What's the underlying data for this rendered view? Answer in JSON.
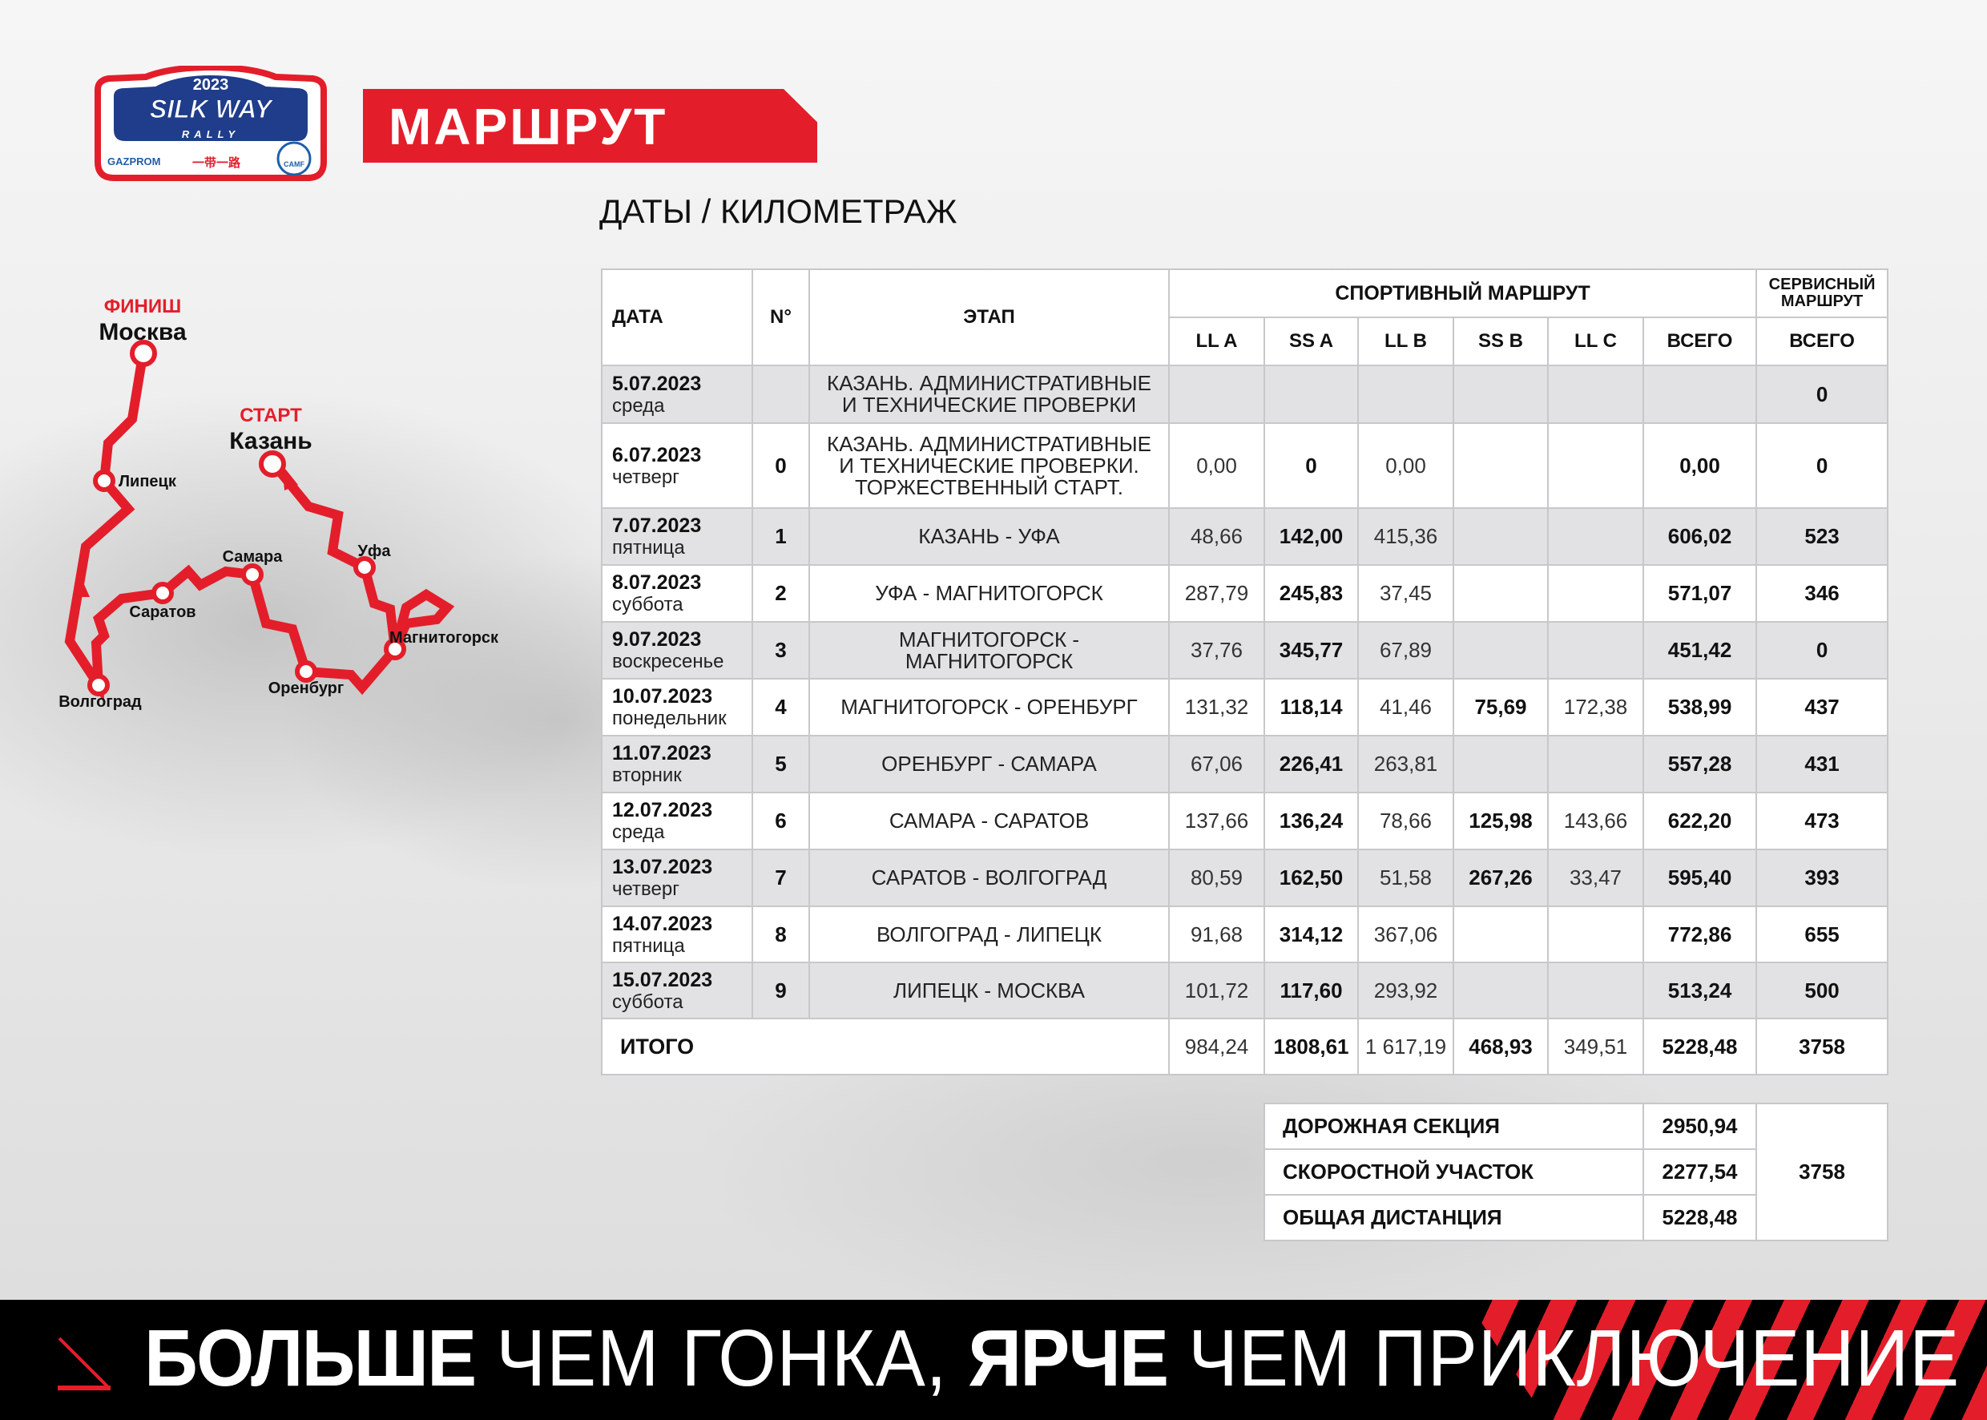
{
  "logo": {
    "year": "2023",
    "name": "SILK WAY",
    "sub": "RALLY",
    "sponsor": "GAZPROM",
    "chinese": "一带一路",
    "badge": "CAMF"
  },
  "header": {
    "title": "МАРШРУТ",
    "subtitle": "ДАТЫ / КИЛОМЕТРАЖ"
  },
  "colors": {
    "accent": "#e31e2a",
    "row_alt": "#e2e2e4",
    "banner": "#000000"
  },
  "map": {
    "finish_label": "ФИНИШ",
    "finish_city": "Москва",
    "start_label": "СТАРТ",
    "start_city": "Казань",
    "cities": [
      "Липецк",
      "Уфа",
      "Самара",
      "Саратов",
      "Магнитогорск",
      "Оренбург",
      "Волгоград"
    ]
  },
  "table": {
    "headers": {
      "date": "ДАТА",
      "num": "N°",
      "stage": "ЭТАП",
      "sport": "СПОРТИВНЫЙ МАРШРУТ",
      "service": "СЕРВИСНЫЙ МАРШРУТ",
      "sub": [
        "LL A",
        "SS A",
        "LL B",
        "SS B",
        "LL C",
        "ВСЕГО",
        "ВСЕГО"
      ]
    },
    "rows": [
      {
        "date": "5.07.2023",
        "day": "среда",
        "num": "",
        "stage": "КАЗАНЬ. АДМИНИСТРАТИВНЫЕ\nИ ТЕХНИЧЕСКИЕ ПРОВЕРКИ",
        "ll_a": "",
        "ss_a": "",
        "ll_b": "",
        "ss_b": "",
        "ll_c": "",
        "total": "",
        "service": "0"
      },
      {
        "date": "6.07.2023",
        "day": "четверг",
        "num": "0",
        "stage": "КАЗАНЬ. АДМИНИСТРАТИВНЫЕ\nИ ТЕХНИЧЕСКИЕ ПРОВЕРКИ.\nТОРЖЕСТВЕННЫЙ СТАРТ.",
        "ll_a": "0,00",
        "ss_a": "0",
        "ll_b": "0,00",
        "ss_b": "",
        "ll_c": "",
        "total": "0,00",
        "service": "0"
      },
      {
        "date": "7.07.2023",
        "day": "пятница",
        "num": "1",
        "stage": "КАЗАНЬ - УФА",
        "ll_a": "48,66",
        "ss_a": "142,00",
        "ll_b": "415,36",
        "ss_b": "",
        "ll_c": "",
        "total": "606,02",
        "service": "523"
      },
      {
        "date": "8.07.2023",
        "day": "суббота",
        "num": "2",
        "stage": "УФА - МАГНИТОГОРСК",
        "ll_a": "287,79",
        "ss_a": "245,83",
        "ll_b": "37,45",
        "ss_b": "",
        "ll_c": "",
        "total": "571,07",
        "service": "346"
      },
      {
        "date": "9.07.2023",
        "day": "воскресенье",
        "num": "3",
        "stage": "МАГНИТОГОРСК -\nМАГНИТОГОРСК",
        "ll_a": "37,76",
        "ss_a": "345,77",
        "ll_b": "67,89",
        "ss_b": "",
        "ll_c": "",
        "total": "451,42",
        "service": "0"
      },
      {
        "date": "10.07.2023",
        "day": "понедельник",
        "num": "4",
        "stage": "МАГНИТОГОРСК - ОРЕНБУРГ",
        "ll_a": "131,32",
        "ss_a": "118,14",
        "ll_b": "41,46",
        "ss_b": "75,69",
        "ll_c": "172,38",
        "total": "538,99",
        "service": "437"
      },
      {
        "date": "11.07.2023",
        "day": "вторник",
        "num": "5",
        "stage": "ОРЕНБУРГ - САМАРА",
        "ll_a": "67,06",
        "ss_a": "226,41",
        "ll_b": "263,81",
        "ss_b": "",
        "ll_c": "",
        "total": "557,28",
        "service": "431"
      },
      {
        "date": "12.07.2023",
        "day": "среда",
        "num": "6",
        "stage": "САМАРА - САРАТОВ",
        "ll_a": "137,66",
        "ss_a": "136,24",
        "ll_b": "78,66",
        "ss_b": "125,98",
        "ll_c": "143,66",
        "total": "622,20",
        "service": "473"
      },
      {
        "date": "13.07.2023",
        "day": "четверг",
        "num": "7",
        "stage": "САРАТОВ - ВОЛГОГРАД",
        "ll_a": "80,59",
        "ss_a": "162,50",
        "ll_b": "51,58",
        "ss_b": "267,26",
        "ll_c": "33,47",
        "total": "595,40",
        "service": "393"
      },
      {
        "date": "14.07.2023",
        "day": "пятница",
        "num": "8",
        "stage": "ВОЛГОГРАД - ЛИПЕЦК",
        "ll_a": "91,68",
        "ss_a": "314,12",
        "ll_b": "367,06",
        "ss_b": "",
        "ll_c": "",
        "total": "772,86",
        "service": "655"
      },
      {
        "date": "15.07.2023",
        "day": "суббота",
        "num": "9",
        "stage": "ЛИПЕЦК - МОСКВА",
        "ll_a": "101,72",
        "ss_a": "117,60",
        "ll_b": "293,92",
        "ss_b": "",
        "ll_c": "",
        "total": "513,24",
        "service": "500"
      }
    ],
    "totals": {
      "label": "ИТОГО",
      "ll_a": "984,24",
      "ss_a": "1808,61",
      "ll_b": "1 617,19",
      "ss_b": "468,93",
      "ll_c": "349,51",
      "total": "5228,48",
      "service": "3758"
    }
  },
  "summary": {
    "rows": [
      {
        "label": "ДОРОЖНАЯ СЕКЦИЯ",
        "value": "2950,94"
      },
      {
        "label": "СКОРОСТНОЙ УЧАСТОК",
        "value": "2277,54"
      },
      {
        "label": "ОБЩАЯ ДИСТАНЦИЯ",
        "value": "5228,48"
      }
    ],
    "service_total": "3758"
  },
  "banner": {
    "part1": "БОЛЬШЕ",
    "part2": "ЧЕМ ГОНКА,",
    "part3": "ЯРЧЕ",
    "part4": "ЧЕМ ПРИКЛЮЧЕНИЕ",
    "icon": "arrow-down-right-icon"
  }
}
